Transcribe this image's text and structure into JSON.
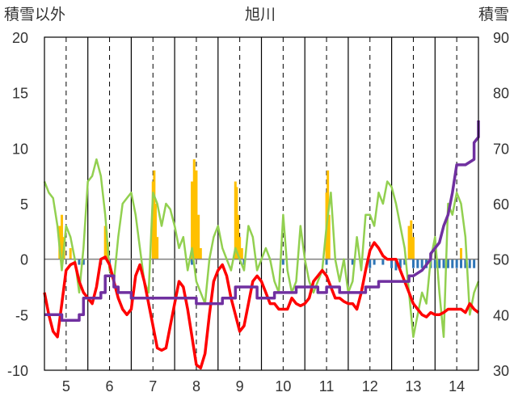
{
  "chart_data": {
    "type": "line",
    "title": "旭川",
    "ylabel_left": "積雪以外",
    "ylabel_right": "積雪",
    "x_categories": [
      "5",
      "6",
      "7",
      "8",
      "9",
      "10",
      "11",
      "12",
      "13",
      "14"
    ],
    "x_range": [
      4.5,
      14.5
    ],
    "left_ylim": [
      -10,
      20
    ],
    "left_yticks": [
      "20",
      "15",
      "10",
      "5",
      "0",
      "-5",
      "-10"
    ],
    "right_ylim": [
      30,
      90
    ],
    "right_yticks": [
      "90",
      "80",
      "70",
      "60",
      "50",
      "40",
      "30"
    ],
    "grid": "dashed vertical lines at category centers, solid at day boundaries",
    "colors": {
      "temperature": "#ff0000",
      "precip_bar": "#ffc000",
      "negative_bar": "#2e75b6",
      "green_line": "#92d050",
      "snow_depth": "#7030a0",
      "axis": "#000000",
      "grid": "#000000"
    },
    "series": [
      {
        "key": "temperature",
        "axis": "left",
        "x": [
          4.5,
          4.6,
          4.7,
          4.8,
          4.9,
          5.0,
          5.1,
          5.2,
          5.3,
          5.4,
          5.5,
          5.6,
          5.7,
          5.8,
          5.9,
          6.0,
          6.1,
          6.2,
          6.3,
          6.4,
          6.5,
          6.6,
          6.7,
          6.8,
          6.9,
          7.0,
          7.1,
          7.2,
          7.3,
          7.4,
          7.5,
          7.6,
          7.7,
          7.8,
          7.9,
          8.0,
          8.1,
          8.2,
          8.3,
          8.4,
          8.5,
          8.6,
          8.7,
          8.8,
          8.9,
          9.0,
          9.1,
          9.2,
          9.3,
          9.4,
          9.5,
          9.6,
          9.7,
          9.8,
          9.9,
          10.0,
          10.1,
          10.2,
          10.3,
          10.4,
          10.5,
          10.6,
          10.7,
          10.8,
          10.9,
          11.0,
          11.1,
          11.2,
          11.3,
          11.4,
          11.5,
          11.6,
          11.7,
          11.8,
          11.9,
          12.0,
          12.1,
          12.2,
          12.3,
          12.4,
          12.5,
          12.6,
          12.7,
          12.8,
          12.9,
          13.0,
          13.1,
          13.2,
          13.3,
          13.4,
          13.5,
          13.6,
          13.7,
          13.8,
          13.9,
          14.0,
          14.1,
          14.2,
          14.3,
          14.4,
          14.5
        ],
        "y": [
          -3,
          -5,
          -6.5,
          -7,
          -4,
          -1,
          -0.5,
          -0.3,
          -2,
          -3,
          -3.5,
          -4,
          -2.5,
          0,
          0.2,
          -0.5,
          -2,
          -3.5,
          -4.5,
          -5,
          -4.5,
          -1.5,
          -0.5,
          -2,
          -4,
          -6,
          -8,
          -8.2,
          -8,
          -6,
          -4,
          -2,
          -2.5,
          -4.5,
          -7,
          -9.5,
          -9.8,
          -8.5,
          -5,
          -2,
          -1,
          -0.5,
          -1.5,
          -3.5,
          -5,
          -6.5,
          -6,
          -4,
          -2,
          -1.5,
          -2,
          -3,
          -4,
          -4,
          -4.5,
          -4.5,
          -4.5,
          -3.5,
          -4,
          -4.2,
          -4,
          -3.5,
          -2,
          -1.5,
          -1,
          -1.5,
          -2.5,
          -3.5,
          -3.5,
          -3.8,
          -4,
          -4,
          -4.5,
          -3,
          -1,
          0.8,
          1.5,
          1,
          0.3,
          0,
          0,
          0,
          -1,
          -2,
          -3,
          -4,
          -4.5,
          -5,
          -5.2,
          -4.8,
          -5,
          -5,
          -4.8,
          -4.5,
          -4.5,
          -4.5,
          -4.5,
          -4.8,
          -4,
          -4.5,
          -4.8
        ]
      },
      {
        "key": "green_line",
        "axis": "left",
        "x": [
          4.5,
          4.6,
          4.7,
          4.8,
          4.9,
          5.0,
          5.1,
          5.2,
          5.3,
          5.4,
          5.5,
          5.6,
          5.7,
          5.8,
          5.9,
          6.0,
          6.1,
          6.2,
          6.3,
          6.4,
          6.5,
          6.6,
          6.7,
          6.8,
          6.9,
          7.0,
          7.1,
          7.2,
          7.3,
          7.4,
          7.5,
          7.6,
          7.7,
          7.8,
          7.9,
          8.0,
          8.1,
          8.2,
          8.3,
          8.4,
          8.5,
          8.6,
          8.7,
          8.8,
          8.9,
          9.0,
          9.1,
          9.2,
          9.3,
          9.4,
          9.5,
          9.6,
          9.7,
          9.8,
          9.9,
          10.0,
          10.1,
          10.2,
          10.3,
          10.4,
          10.5,
          10.6,
          10.7,
          10.8,
          10.9,
          11.0,
          11.1,
          11.2,
          11.3,
          11.4,
          11.5,
          11.6,
          11.7,
          11.8,
          11.9,
          12.0,
          12.1,
          12.2,
          12.3,
          12.4,
          12.5,
          12.6,
          12.7,
          12.8,
          12.9,
          13.0,
          13.1,
          13.2,
          13.3,
          13.4,
          13.5,
          13.6,
          13.7,
          13.8,
          13.9,
          14.0,
          14.1,
          14.2,
          14.3,
          14.4,
          14.5
        ],
        "y": [
          7,
          6,
          5.5,
          3,
          -1,
          3,
          2,
          0,
          -3,
          1,
          7,
          7.5,
          9,
          7.5,
          4,
          -1,
          -2,
          2,
          5,
          5.5,
          6,
          4,
          1,
          -2,
          -3,
          6,
          5,
          3,
          5,
          4.5,
          3,
          1,
          2,
          -1,
          1,
          -2,
          -3,
          -4,
          0,
          2,
          3,
          1,
          0,
          -1,
          1,
          0,
          -1,
          3,
          2,
          -1,
          0,
          1,
          0,
          -2,
          -3,
          4,
          -1,
          -3,
          -2,
          3,
          0,
          -2,
          -3,
          -2,
          -1,
          3,
          6,
          0,
          -2,
          0,
          -3,
          -2,
          2,
          -1,
          4,
          4,
          3,
          6,
          5,
          7,
          6.5,
          5,
          3,
          1,
          -3,
          -7,
          -5,
          -3,
          -4,
          0,
          2,
          -3,
          -7,
          5,
          4,
          6,
          5,
          2,
          -5,
          -3,
          -2
        ]
      },
      {
        "key": "snow_depth",
        "axis": "right",
        "x": [
          4.5,
          4.9,
          4.9,
          5.3,
          5.3,
          5.4,
          5.4,
          5.6,
          5.6,
          5.8,
          5.8,
          5.9,
          5.9,
          6.1,
          6.1,
          6.2,
          6.2,
          6.5,
          6.5,
          7.0,
          7.0,
          8.0,
          8.0,
          8.6,
          8.6,
          8.9,
          8.9,
          9.4,
          9.4,
          9.8,
          9.8,
          10.3,
          10.3,
          10.8,
          10.8,
          11.0,
          11.0,
          11.3,
          11.3,
          11.9,
          11.9,
          12.2,
          12.2,
          12.6,
          12.6,
          12.9,
          12.9,
          13.0,
          13.2,
          13.4,
          13.4,
          13.5,
          13.6,
          13.7,
          13.8,
          13.9,
          14.0,
          14.2,
          14.4,
          14.4,
          14.5,
          14.5
        ],
        "y": [
          40,
          40,
          39,
          39,
          40,
          40,
          43,
          43,
          43,
          43,
          44,
          44,
          47,
          47,
          45,
          45,
          44,
          44,
          43,
          43,
          43,
          43,
          42,
          42,
          43,
          43,
          45,
          45,
          43,
          43,
          44,
          44,
          45,
          45,
          44,
          44,
          45,
          45,
          44,
          44,
          45,
          45,
          46,
          46,
          46,
          46,
          47,
          47,
          48,
          50,
          51,
          52,
          53,
          56,
          58,
          62,
          67,
          67,
          68,
          71,
          72,
          75
        ]
      }
    ],
    "bars": [
      {
        "key": "precip_bar",
        "axis": "left",
        "x": [
          4.85,
          4.9,
          4.95,
          5.1,
          5.9,
          5.93,
          5.96,
          7.0,
          7.03,
          7.06,
          7.1,
          7.9,
          7.95,
          8.0,
          8.05,
          8.1,
          8.9,
          8.93,
          8.96,
          9.0,
          9.05,
          11.0,
          11.03,
          11.06,
          12.9,
          12.95,
          13.0,
          14.1
        ],
        "y": [
          3,
          4,
          2,
          1,
          3,
          2.5,
          1.5,
          7,
          8,
          5,
          2,
          7,
          9,
          8,
          4,
          1,
          7,
          6.5,
          4,
          2,
          1,
          6,
          8,
          4,
          3,
          3.5,
          2,
          1
        ]
      },
      {
        "key": "negative_bar",
        "axis": "left",
        "x": [
          5.3,
          5.4,
          5.8,
          6.0,
          7.9,
          9.1,
          10.0,
          11.0,
          11.4,
          11.6,
          12.0,
          12.1,
          12.3,
          12.5,
          12.6,
          12.7,
          12.8,
          13.0,
          13.1,
          13.2,
          13.3,
          13.4,
          13.5,
          13.6,
          13.7,
          13.8,
          13.9,
          14.0,
          14.1,
          14.2,
          14.3,
          14.4
        ],
        "y": [
          -0.5,
          -0.5,
          -0.5,
          -0.8,
          -0.5,
          -0.5,
          -0.5,
          -0.5,
          -0.5,
          -0.5,
          -0.8,
          -0.5,
          -0.5,
          -0.8,
          -1,
          -0.8,
          -0.5,
          -0.8,
          -0.8,
          -0.8,
          -0.8,
          -0.8,
          -0.8,
          -0.8,
          -0.8,
          -0.8,
          -0.8,
          -0.8,
          -0.8,
          -0.8,
          -0.8,
          -0.8
        ]
      }
    ]
  }
}
